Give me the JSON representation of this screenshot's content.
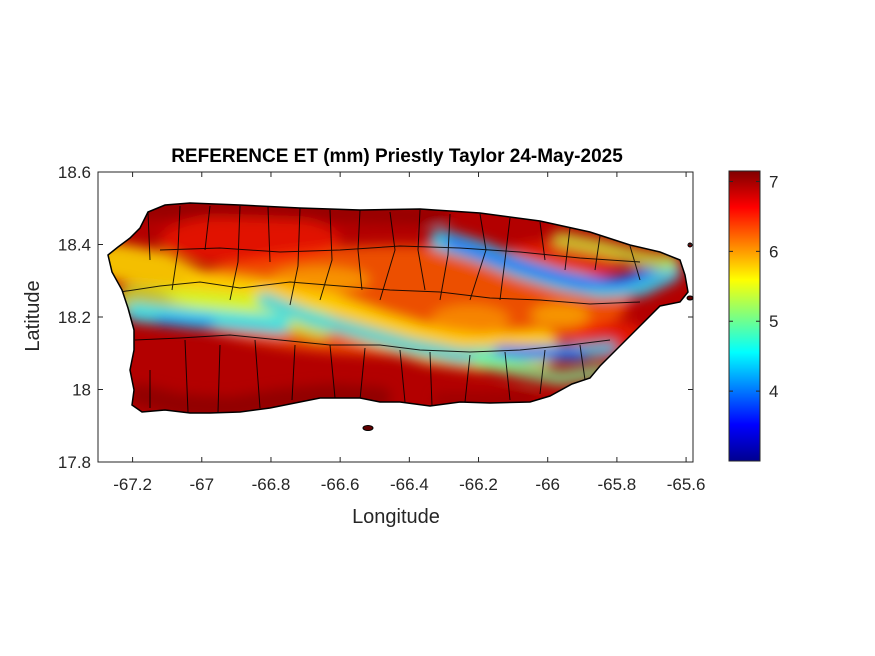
{
  "figure": {
    "title": "REFERENCE ET (mm) Priestly Taylor 24-May-2025",
    "xlabel": "Longitude",
    "ylabel": "Latitude"
  },
  "map": {
    "region": "Puerto Rico",
    "variable": "Reference ET",
    "units": "mm",
    "method": "Priestly Taylor",
    "date": "24-May-2025",
    "colormap": "jet",
    "x_range": [
      -67.3,
      -65.58
    ],
    "y_range": [
      17.8,
      18.6
    ],
    "x_ticks": [
      "-67.2",
      "-67",
      "-66.8",
      "-66.6",
      "-66.4",
      "-66.2",
      "-66",
      "-65.8",
      "-65.6"
    ],
    "y_ticks": [
      "18.6",
      "18.4",
      "18.2",
      "18",
      "17.8"
    ],
    "colorbar": {
      "range": [
        3.0,
        7.15
      ],
      "ticks": [
        "7",
        "6",
        "5",
        "4"
      ]
    },
    "colors": {
      "jet_low": "#00008f",
      "jet_mid": "#7fff7f",
      "jet_high": "#800000",
      "boundaries": "#000000"
    }
  }
}
